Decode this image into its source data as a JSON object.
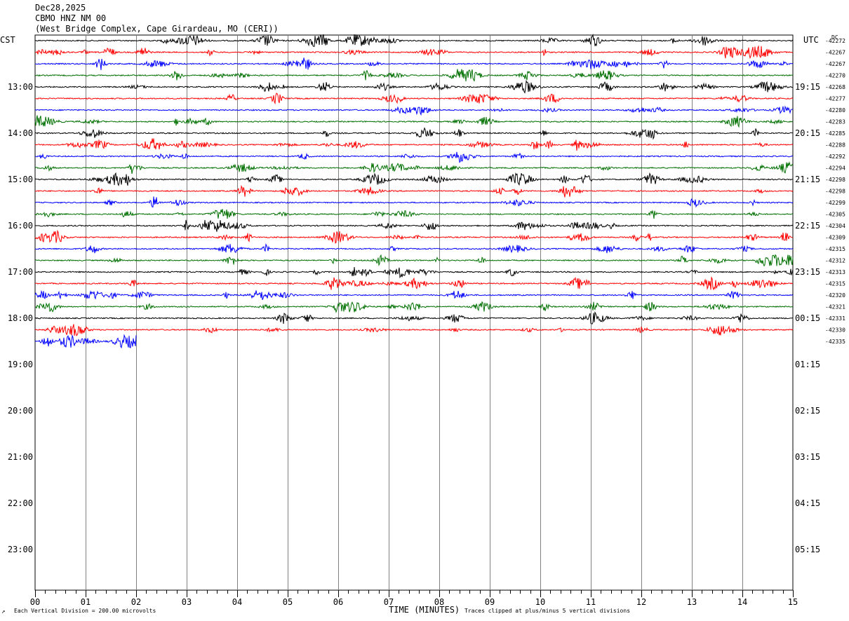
{
  "header": {
    "date": "Dec28,2025",
    "station": "CBMO HNZ NM 00",
    "location": "(West Bridge Complex, Cape Girardeau, MO (CERI))"
  },
  "left_axis_label": "CST",
  "right_axis_label": "UTC",
  "dc_label": "DC",
  "footer": {
    "scale_note": "Each Vertical Division =  200.00 microvolts",
    "clip_note": "Traces clipped at plus/minus 5 vertical divisions",
    "corner_mark": "↗"
  },
  "colors": {
    "trace_cycle": [
      "#000000",
      "#ff0000",
      "#0000ff",
      "#007000"
    ],
    "grid": "#808080",
    "frame": "#000000"
  },
  "chart_data": {
    "type": "line",
    "title": "",
    "xlabel": "TIME (MINUTES)",
    "ylabel": "",
    "xlim": [
      0,
      15
    ],
    "x_ticks": [
      "00",
      "01",
      "02",
      "03",
      "04",
      "05",
      "06",
      "07",
      "08",
      "09",
      "10",
      "11",
      "12",
      "13",
      "14",
      "15"
    ],
    "rows_total": 48,
    "row_minutes": 15,
    "left_hour_labels": [
      {
        "row": 4,
        "label": "13:00"
      },
      {
        "row": 8,
        "label": "14:00"
      },
      {
        "row": 12,
        "label": "15:00"
      },
      {
        "row": 16,
        "label": "16:00"
      },
      {
        "row": 20,
        "label": "17:00"
      },
      {
        "row": 24,
        "label": "18:00"
      },
      {
        "row": 28,
        "label": "19:00"
      },
      {
        "row": 32,
        "label": "20:00"
      },
      {
        "row": 36,
        "label": "21:00"
      },
      {
        "row": 40,
        "label": "22:00"
      },
      {
        "row": 44,
        "label": "23:00"
      }
    ],
    "right_hour_labels": [
      {
        "row": 4,
        "label": "19:15"
      },
      {
        "row": 8,
        "label": "20:15"
      },
      {
        "row": 12,
        "label": "21:15"
      },
      {
        "row": 16,
        "label": "22:15"
      },
      {
        "row": 20,
        "label": "23:15"
      },
      {
        "row": 24,
        "label": "00:15"
      },
      {
        "row": 28,
        "label": "01:15"
      },
      {
        "row": 32,
        "label": "02:15"
      },
      {
        "row": 36,
        "label": "03:15"
      },
      {
        "row": 40,
        "label": "04:15"
      },
      {
        "row": 44,
        "label": "05:15"
      }
    ],
    "dc_offsets": [
      "-42272",
      "-42267",
      "-42267",
      "-42270",
      "-42268",
      "-42277",
      "-42280",
      "-42283",
      "-42285",
      "-42288",
      "-42292",
      "-42294",
      "-42298",
      "-42298",
      "-42299",
      "-42305",
      "-42304",
      "-42309",
      "-42315",
      "-42312",
      "-42313",
      "-42315",
      "-42320",
      "-42321",
      "-42331",
      "-42330",
      "-42335"
    ],
    "traces": [
      {
        "row": 0,
        "end_minute": 15
      },
      {
        "row": 1,
        "end_minute": 15
      },
      {
        "row": 2,
        "end_minute": 15
      },
      {
        "row": 3,
        "end_minute": 15
      },
      {
        "row": 4,
        "end_minute": 15
      },
      {
        "row": 5,
        "end_minute": 15
      },
      {
        "row": 6,
        "end_minute": 15
      },
      {
        "row": 7,
        "end_minute": 15
      },
      {
        "row": 8,
        "end_minute": 15
      },
      {
        "row": 9,
        "end_minute": 15
      },
      {
        "row": 10,
        "end_minute": 15
      },
      {
        "row": 11,
        "end_minute": 15
      },
      {
        "row": 12,
        "end_minute": 15
      },
      {
        "row": 13,
        "end_minute": 15
      },
      {
        "row": 14,
        "end_minute": 15
      },
      {
        "row": 15,
        "end_minute": 15
      },
      {
        "row": 16,
        "end_minute": 15
      },
      {
        "row": 17,
        "end_minute": 15
      },
      {
        "row": 18,
        "end_minute": 15
      },
      {
        "row": 19,
        "end_minute": 15
      },
      {
        "row": 20,
        "end_minute": 15
      },
      {
        "row": 21,
        "end_minute": 15
      },
      {
        "row": 22,
        "end_minute": 15
      },
      {
        "row": 23,
        "end_minute": 15
      },
      {
        "row": 24,
        "end_minute": 15
      },
      {
        "row": 25,
        "end_minute": 15
      },
      {
        "row": 26,
        "end_minute": 2
      }
    ]
  }
}
